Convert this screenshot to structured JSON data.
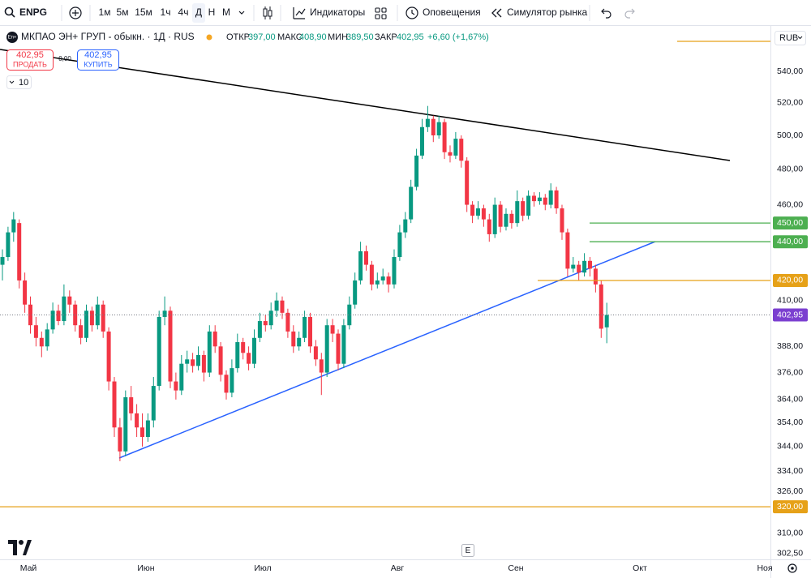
{
  "toolbar": {
    "symbol": "ENPG",
    "intervals": [
      "1м",
      "5м",
      "15м",
      "1ч",
      "4ч",
      "Д",
      "Н",
      "М"
    ],
    "indicators": "Индикаторы",
    "alerts": "Оповещения",
    "simulator": "Симулятор рынка"
  },
  "legend": {
    "name": "МКПАО ЭН+ ГРУП - обыкн. · 1Д · RUS",
    "open_label": "ОТКР",
    "open": "397,00",
    "high_label": "МАКС",
    "high": "408,90",
    "low_label": "МИН",
    "low": "389,50",
    "close_label": "ЗАКР",
    "close": "402,95",
    "change": "+6,60 (+1,67%)"
  },
  "trade": {
    "sell_price": "402,95",
    "sell_label": "ПРОДАТЬ",
    "spread": "0,00",
    "buy_price": "402,95",
    "buy_label": "КУПИТЬ",
    "quantity": "10"
  },
  "currency": "RUB",
  "e_button": "E",
  "chart_data": {
    "type": "candlestick",
    "up_color": "#089981",
    "down_color": "#f23645",
    "log_scale": true,
    "grid": false,
    "ylim": [
      300.4,
      568.6
    ],
    "xlim": [
      -0.435,
      137.25
    ],
    "yticks": [
      {
        "value": 302.5,
        "label": "302,50"
      },
      {
        "value": 310,
        "label": "310,00"
      },
      {
        "value": 326,
        "label": "326,00"
      },
      {
        "value": 334,
        "label": "334,00"
      },
      {
        "value": 344,
        "label": "344,00"
      },
      {
        "value": 354,
        "label": "354,00"
      },
      {
        "value": 364,
        "label": "364,00"
      },
      {
        "value": 376,
        "label": "376,00"
      },
      {
        "value": 388,
        "label": "388,00"
      },
      {
        "value": 410,
        "label": "410,00"
      },
      {
        "value": 460,
        "label": "460,00"
      },
      {
        "value": 480,
        "label": "480,00"
      },
      {
        "value": 500,
        "label": "500,00"
      },
      {
        "value": 520,
        "label": "520,00"
      },
      {
        "value": 540,
        "label": "540,00"
      }
    ],
    "xticks": [
      {
        "value": 4.64,
        "label": "Май"
      },
      {
        "value": 25.65,
        "label": "Июн"
      },
      {
        "value": 46.52,
        "label": "Июл"
      },
      {
        "value": 70.58,
        "label": "Авг"
      },
      {
        "value": 91.74,
        "label": "Сен"
      },
      {
        "value": 113.92,
        "label": "Окт"
      },
      {
        "value": 136.24,
        "label": "Ноя"
      }
    ],
    "price_line": {
      "value": 402.95,
      "label": "402,95",
      "color": "#7b3fd0"
    },
    "hlines": [
      {
        "value": 450,
        "label": "450,00",
        "color": "#4caf50"
      },
      {
        "value": 440,
        "label": "440,00",
        "color": "#4caf50"
      },
      {
        "value": 420,
        "label": "420,00",
        "color": "#e6a118"
      },
      {
        "value": 320,
        "label": "320,00",
        "color": "#e6a118"
      }
    ],
    "ohlc": [
      [
        428,
        436,
        420,
        432
      ],
      [
        432,
        448,
        430,
        445
      ],
      [
        445,
        456,
        440,
        452
      ],
      [
        450,
        452,
        416,
        420
      ],
      [
        420,
        424,
        404,
        408
      ],
      [
        408,
        412,
        394,
        398
      ],
      [
        398,
        402,
        388,
        392
      ],
      [
        392,
        395,
        383,
        388
      ],
      [
        388,
        399,
        386,
        396
      ],
      [
        396,
        409,
        394,
        405
      ],
      [
        405,
        408,
        398,
        400
      ],
      [
        400,
        418,
        398,
        412
      ],
      [
        412,
        415,
        404,
        408
      ],
      [
        408,
        410,
        395,
        398
      ],
      [
        398,
        401,
        389,
        392
      ],
      [
        392,
        408,
        390,
        405
      ],
      [
        405,
        407,
        395,
        398
      ],
      [
        398,
        412,
        396,
        408
      ],
      [
        408,
        410,
        392,
        395
      ],
      [
        395,
        397,
        368,
        372
      ],
      [
        372,
        374,
        348,
        352
      ],
      [
        352,
        356,
        338,
        342
      ],
      [
        342,
        368,
        340,
        365
      ],
      [
        365,
        370,
        355,
        358
      ],
      [
        358,
        362,
        348,
        352
      ],
      [
        352,
        358,
        344,
        348
      ],
      [
        348,
        358,
        346,
        355
      ],
      [
        355,
        374,
        352,
        370
      ],
      [
        370,
        405,
        368,
        402
      ],
      [
        402,
        412,
        398,
        405
      ],
      [
        405,
        407,
        369,
        372
      ],
      [
        372,
        376,
        364,
        368
      ],
      [
        368,
        384,
        366,
        380
      ],
      [
        380,
        386,
        376,
        382
      ],
      [
        382,
        385,
        376,
        379
      ],
      [
        379,
        388,
        377,
        384
      ],
      [
        384,
        386,
        372,
        376
      ],
      [
        376,
        398,
        374,
        395
      ],
      [
        395,
        398,
        385,
        388
      ],
      [
        388,
        390,
        372,
        375
      ],
      [
        375,
        377,
        364,
        367
      ],
      [
        367,
        382,
        365,
        378
      ],
      [
        378,
        394,
        376,
        390
      ],
      [
        390,
        392,
        382,
        385
      ],
      [
        385,
        388,
        377,
        380
      ],
      [
        380,
        396,
        378,
        392
      ],
      [
        392,
        404,
        390,
        400
      ],
      [
        400,
        403,
        395,
        398
      ],
      [
        398,
        409,
        396,
        405
      ],
      [
        405,
        414,
        402,
        410
      ],
      [
        410,
        412,
        401,
        404
      ],
      [
        404,
        406,
        392,
        395
      ],
      [
        395,
        398,
        385,
        388
      ],
      [
        388,
        395,
        386,
        392
      ],
      [
        392,
        405,
        390,
        402
      ],
      [
        402,
        404,
        385,
        388
      ],
      [
        388,
        391,
        379,
        382
      ],
      [
        382,
        385,
        366,
        376
      ],
      [
        376,
        401,
        374,
        398
      ],
      [
        398,
        401,
        390,
        394
      ],
      [
        394,
        396,
        377,
        380
      ],
      [
        380,
        401,
        378,
        398
      ],
      [
        398,
        412,
        396,
        408
      ],
      [
        408,
        424,
        406,
        420
      ],
      [
        420,
        440,
        418,
        435
      ],
      [
        435,
        438,
        425,
        428
      ],
      [
        428,
        430,
        415,
        418
      ],
      [
        418,
        424,
        416,
        420
      ],
      [
        420,
        426,
        418,
        422
      ],
      [
        422,
        424,
        414,
        418
      ],
      [
        418,
        436,
        416,
        432
      ],
      [
        432,
        449,
        430,
        445
      ],
      [
        445,
        456,
        442,
        452
      ],
      [
        452,
        474,
        450,
        470
      ],
      [
        470,
        492,
        468,
        488
      ],
      [
        488,
        510,
        486,
        505
      ],
      [
        505,
        518,
        502,
        510
      ],
      [
        510,
        512,
        496,
        500
      ],
      [
        500,
        512,
        498,
        508
      ],
      [
        508,
        510,
        486,
        490
      ],
      [
        490,
        494,
        484,
        488
      ],
      [
        488,
        502,
        486,
        498
      ],
      [
        498,
        500,
        481,
        485
      ],
      [
        485,
        487,
        456,
        460
      ],
      [
        460,
        462,
        450,
        454
      ],
      [
        454,
        462,
        452,
        458
      ],
      [
        458,
        460,
        448,
        452
      ],
      [
        452,
        455,
        440,
        444
      ],
      [
        444,
        464,
        442,
        460
      ],
      [
        460,
        462,
        445,
        448
      ],
      [
        448,
        458,
        446,
        455
      ],
      [
        455,
        457,
        447,
        450
      ],
      [
        450,
        468,
        448,
        462
      ],
      [
        462,
        464,
        451,
        454
      ],
      [
        454,
        468,
        452,
        465
      ],
      [
        465,
        467,
        459,
        462
      ],
      [
        462,
        467,
        460,
        464
      ],
      [
        464,
        466,
        457,
        460
      ],
      [
        460,
        472,
        458,
        468
      ],
      [
        468,
        470,
        455,
        458
      ],
      [
        458,
        460,
        441,
        445
      ],
      [
        445,
        447,
        422,
        426
      ],
      [
        426,
        432,
        424,
        428
      ],
      [
        428,
        430,
        420,
        424
      ],
      [
        424,
        434,
        422,
        430
      ],
      [
        430,
        432,
        422,
        426
      ],
      [
        426,
        428,
        414,
        418
      ],
      [
        418,
        420,
        392,
        396.35
      ],
      [
        397,
        408.9,
        389.5,
        402.95
      ]
    ]
  }
}
